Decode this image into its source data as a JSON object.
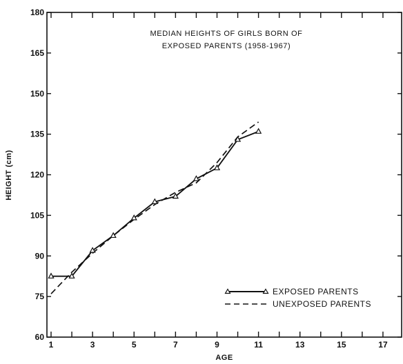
{
  "chart_data": {
    "type": "line",
    "title": "MEDIAN HEIGHTS OF GIRLS BORN OF",
    "subtitle": "EXPOSED PARENTS (1958-1967)",
    "xlabel": "AGE",
    "ylabel": "HEIGHT (cm)",
    "xlim": [
      0.8,
      17.9
    ],
    "ylim": [
      60,
      180
    ],
    "x_ticks": [
      1,
      3,
      5,
      7,
      9,
      11,
      13,
      15,
      17
    ],
    "x_tick_labels": [
      "1",
      "3",
      "5",
      "7",
      "9",
      "11",
      "13",
      "15",
      "17"
    ],
    "y_ticks": [
      60,
      75,
      90,
      105,
      120,
      135,
      150,
      165,
      180
    ],
    "y_tick_labels": [
      "60",
      "75",
      "90",
      "105",
      "120",
      "135",
      "150",
      "165",
      "180"
    ],
    "grid": false,
    "legend_position": "bottom-right",
    "series": [
      {
        "name": "EXPOSED PARENTS",
        "style": "solid-triangle-markers",
        "x": [
          1,
          2,
          3,
          4,
          5,
          6,
          7,
          8,
          9,
          10,
          11
        ],
        "values": [
          82.5,
          82.5,
          92,
          97.5,
          104,
          110,
          112,
          118.5,
          122.5,
          133,
          136
        ]
      },
      {
        "name": "UNEXPOSED PARENTS",
        "style": "dashed",
        "x": [
          1,
          2,
          3,
          4,
          5,
          6,
          7,
          8,
          9,
          10,
          11
        ],
        "values": [
          76,
          84,
          91,
          97.5,
          103.5,
          109,
          113.5,
          117,
          124.5,
          134,
          139.5
        ]
      }
    ]
  }
}
